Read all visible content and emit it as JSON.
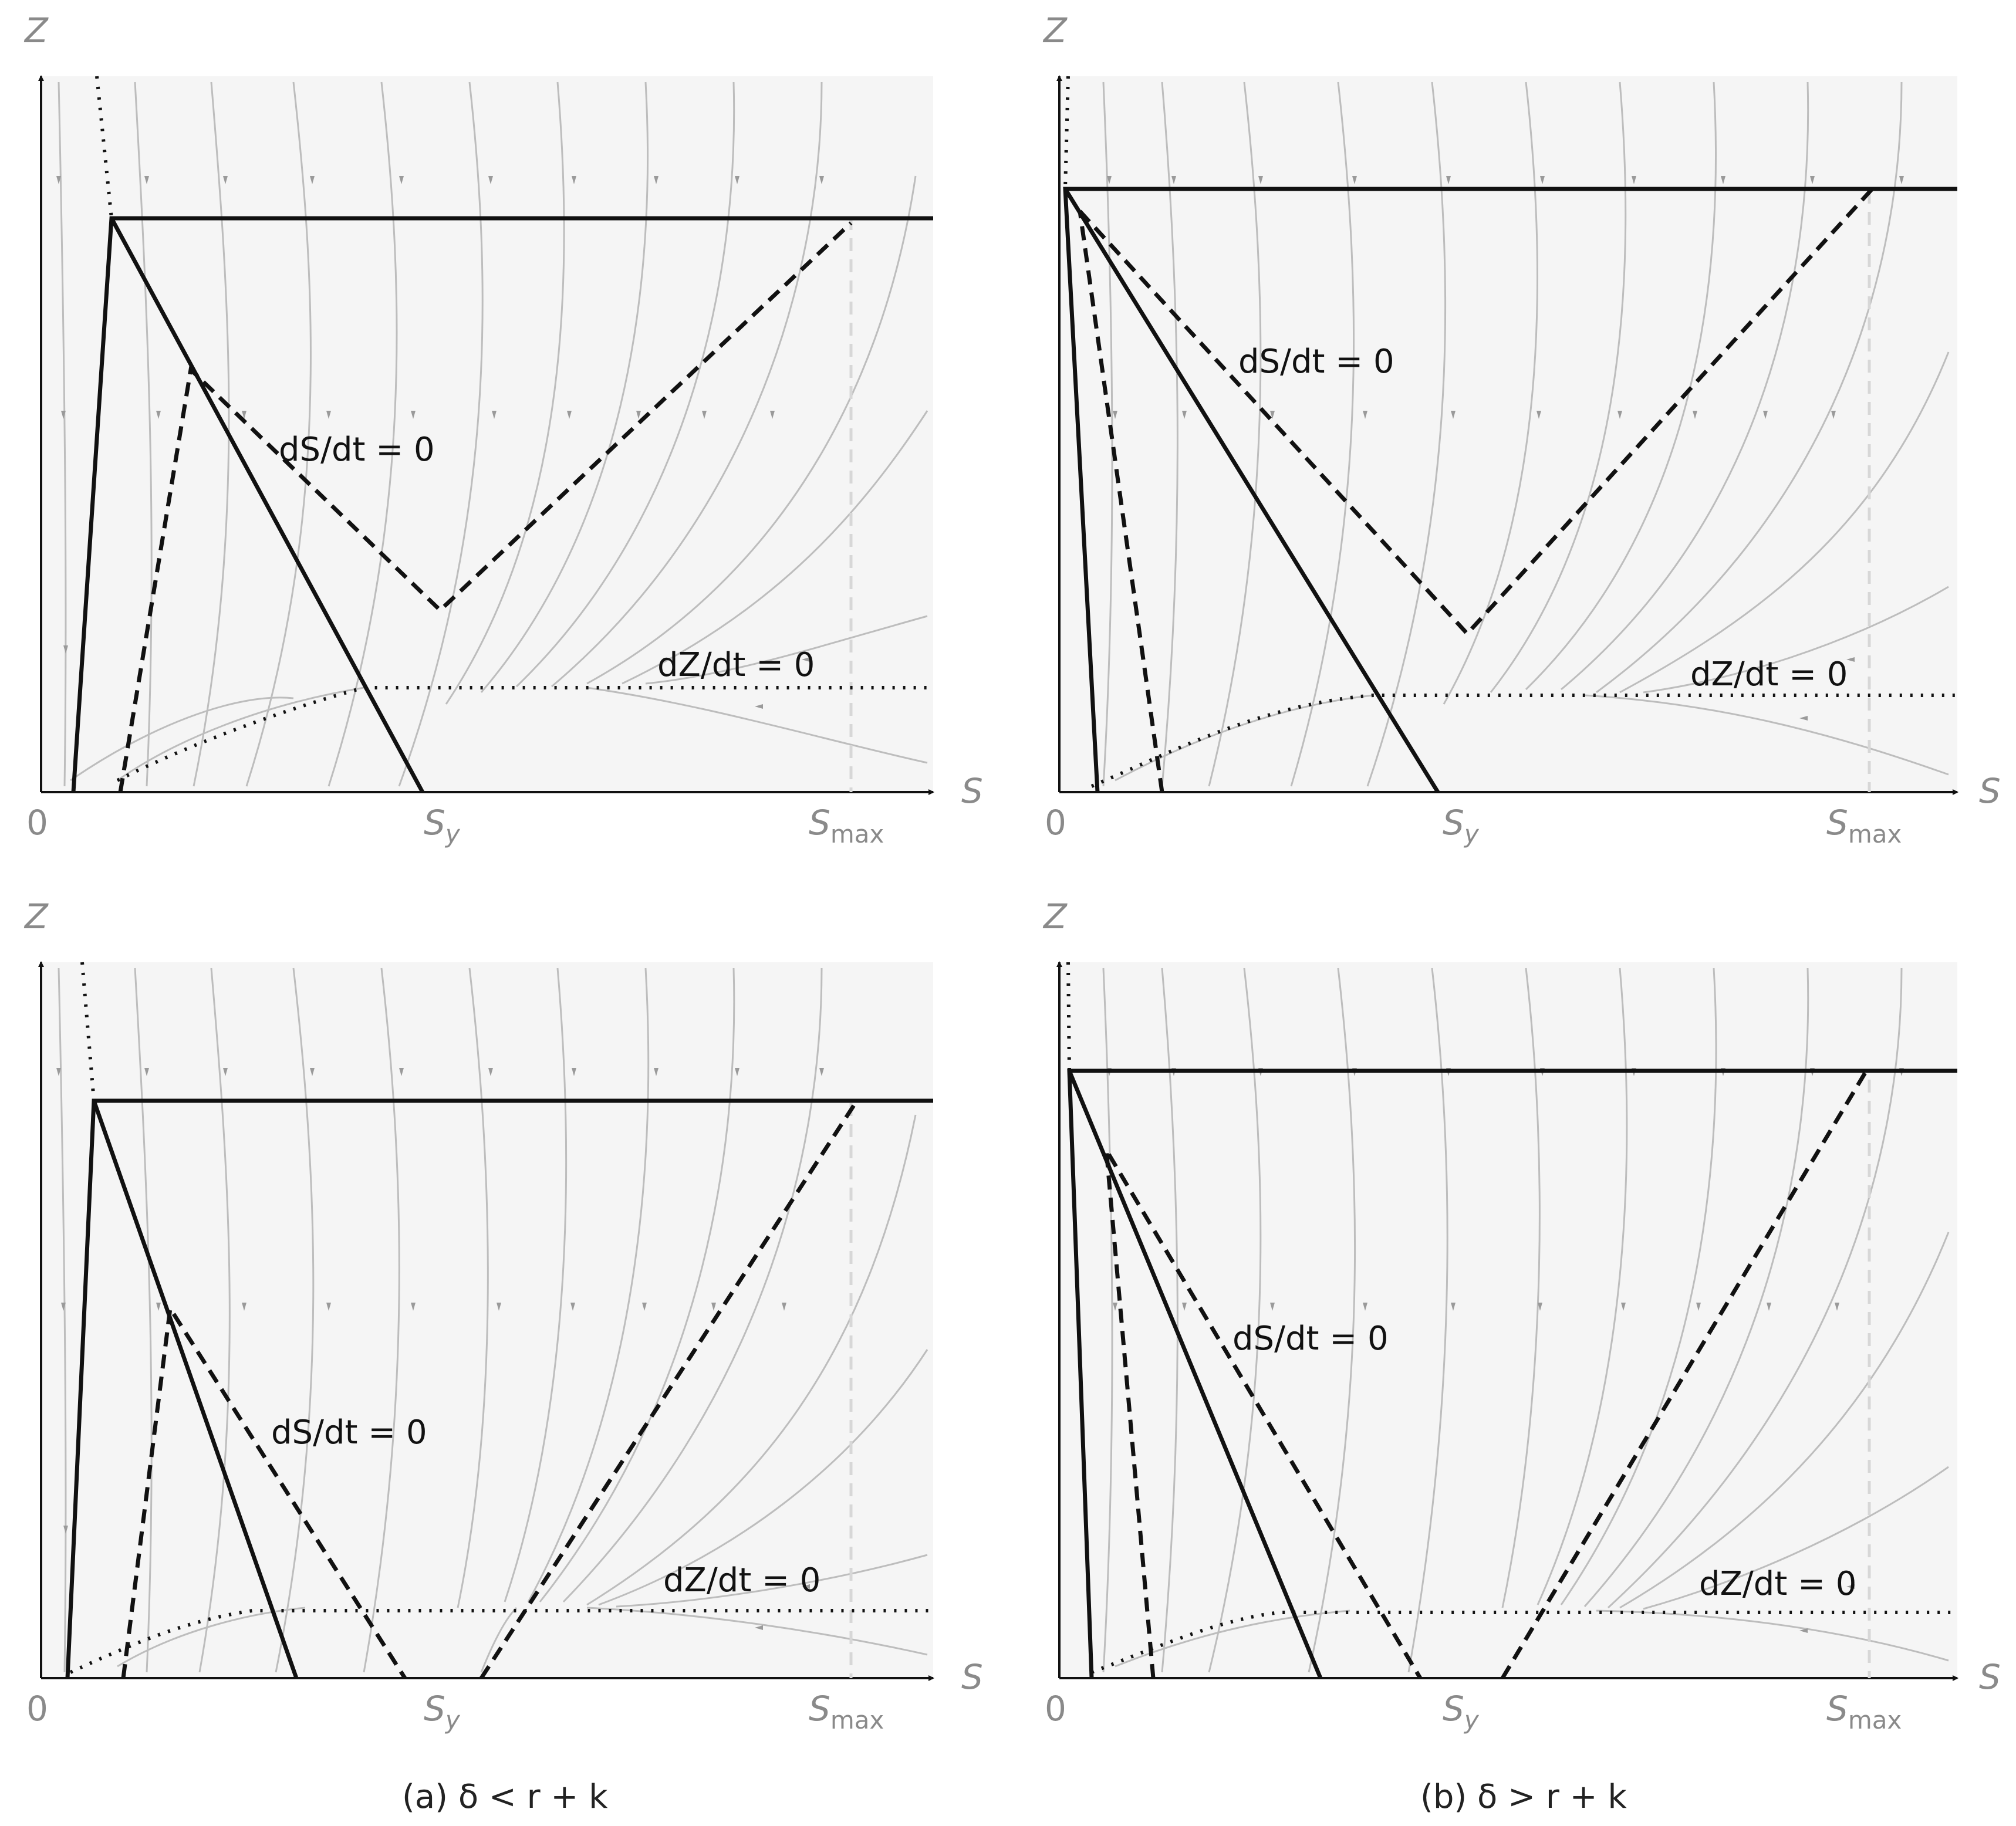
{
  "axis_labels": {
    "z": "Z",
    "s": "S",
    "origin": "0",
    "sy": "S",
    "sy_sub": "y",
    "smax": "S",
    "smax_sub": "max"
  },
  "panels": [
    {
      "id": "a_top",
      "dS_label": "dS/dt = 0",
      "dZ_label": "dZ/dt = 0"
    },
    {
      "id": "b_top",
      "dS_label": "dS/dt = 0",
      "dZ_label": "dZ/dt = 0"
    },
    {
      "id": "a_bottom",
      "dS_label": "dS/dt = 0",
      "dZ_label": "dZ/dt = 0"
    },
    {
      "id": "b_bottom",
      "dS_label": "dS/dt = 0",
      "dZ_label": "dZ/dt = 0"
    }
  ],
  "captions": {
    "a": "(a) δ < r + k",
    "b": "(b) δ > r + k"
  },
  "colors": {
    "stream": "#b8b8b8",
    "arrow": "#9a9a9a",
    "axes": "#111111",
    "region": "#f5f5f5"
  }
}
